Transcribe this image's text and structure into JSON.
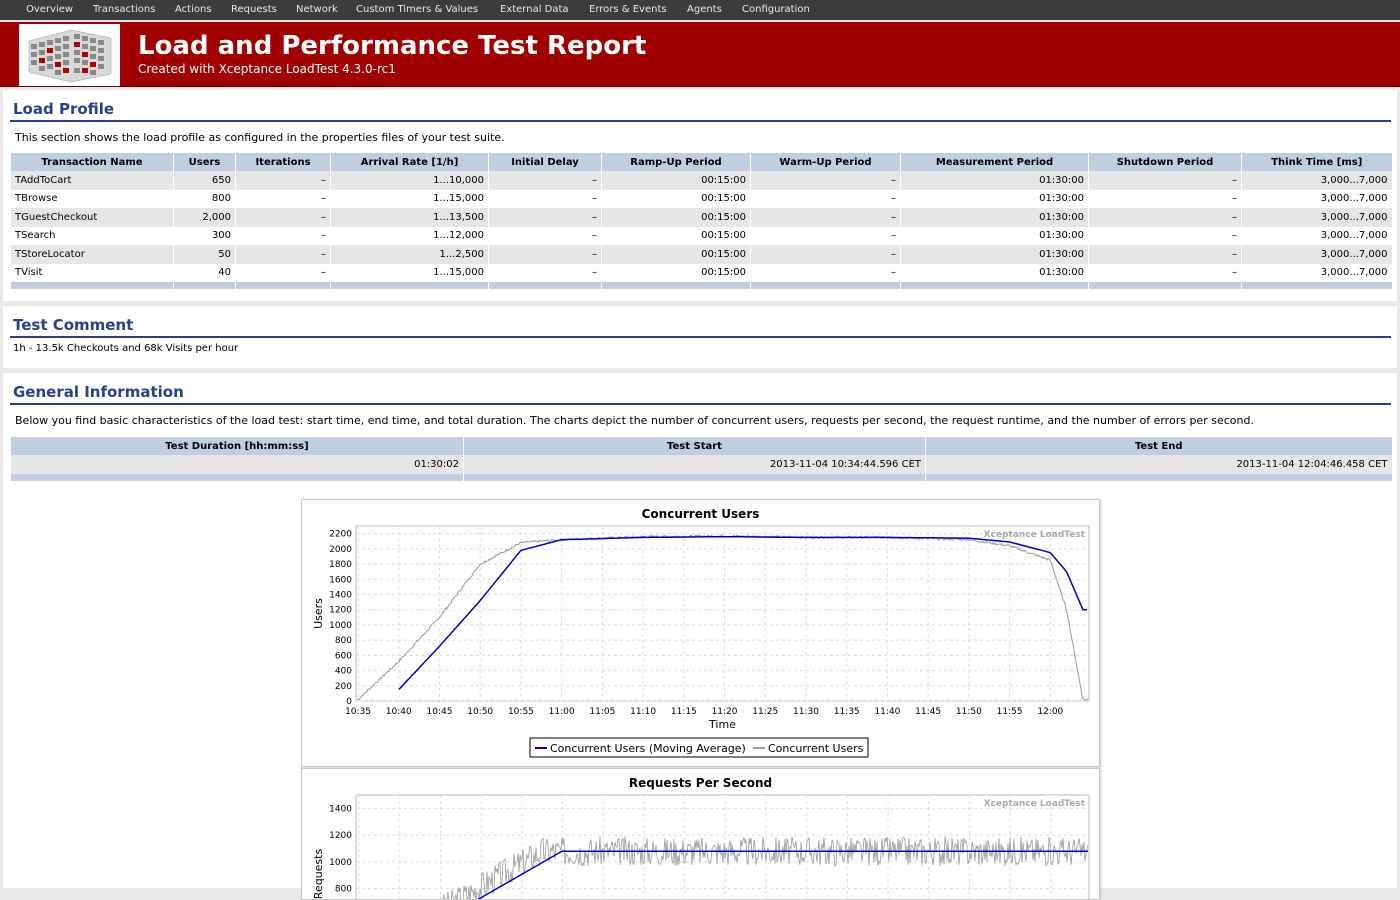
{
  "nav": [
    "Overview",
    "Transactions",
    "Actions",
    "Requests",
    "Network",
    "Custom Timers & Values",
    "External Data",
    "Errors & Events",
    "Agents",
    "Configuration"
  ],
  "header": {
    "title": "Load and Performance Test Report",
    "subtitle": "Created with Xceptance LoadTest 4.3.0-rc1"
  },
  "load_profile": {
    "title": "Load Profile",
    "description": "This section shows the load profile as configured in the properties files of your test suite.",
    "columns": [
      "Transaction Name",
      "Users",
      "Iterations",
      "Arrival Rate [1/h]",
      "Initial Delay",
      "Ramp-Up Period",
      "Warm-Up Period",
      "Measurement Period",
      "Shutdown Period",
      "Think Time [ms]"
    ],
    "rows": [
      [
        "TAddToCart",
        "650",
        "–",
        "1...10,000",
        "–",
        "00:15:00",
        "–",
        "01:30:00",
        "–",
        "3,000...7,000"
      ],
      [
        "TBrowse",
        "800",
        "–",
        "1...15,000",
        "–",
        "00:15:00",
        "–",
        "01:30:00",
        "–",
        "3,000...7,000"
      ],
      [
        "TGuestCheckout",
        "2,000",
        "–",
        "1...13,500",
        "–",
        "00:15:00",
        "–",
        "01:30:00",
        "–",
        "3,000...7,000"
      ],
      [
        "TSearch",
        "300",
        "–",
        "1...12,000",
        "–",
        "00:15:00",
        "–",
        "01:30:00",
        "–",
        "3,000...7,000"
      ],
      [
        "TStoreLocator",
        "50",
        "–",
        "1...2,500",
        "–",
        "00:15:00",
        "–",
        "01:30:00",
        "–",
        "3,000...7,000"
      ],
      [
        "TVisit",
        "40",
        "–",
        "1...15,000",
        "–",
        "00:15:00",
        "–",
        "01:30:00",
        "–",
        "3,000...7,000"
      ]
    ]
  },
  "test_comment": {
    "title": "Test Comment",
    "text": "1h - 13.5k Checkouts and 68k Visits per hour"
  },
  "general_info": {
    "title": "General Information",
    "description": "Below you find basic characteristics of the load test: start time, end time, and total duration. The charts depict the number of concurrent users, requests per second, the request runtime, and the number of errors per second.",
    "columns": [
      "Test Duration [hh:mm:ss]",
      "Test Start",
      "Test End"
    ],
    "values": [
      "01:30:02",
      "2013-11-04 10:34:44.596 CET",
      "2013-11-04 12:04:46.458 CET"
    ]
  },
  "chart_data": [
    {
      "type": "line",
      "title": "Concurrent Users",
      "watermark": "Xceptance LoadTest",
      "xlabel": "Time",
      "ylabel": "Users",
      "x_ticks": [
        "10:35",
        "10:40",
        "10:45",
        "10:50",
        "10:55",
        "11:00",
        "11:05",
        "11:10",
        "11:15",
        "11:20",
        "11:25",
        "11:30",
        "11:35",
        "11:40",
        "11:45",
        "11:50",
        "11:55",
        "12:00"
      ],
      "y_ticks": [
        0,
        200,
        400,
        600,
        800,
        1000,
        1200,
        1400,
        1600,
        1800,
        2000,
        2200
      ],
      "ylim": [
        0,
        2300
      ],
      "grid": true,
      "legend_position": "bottom",
      "series": [
        {
          "name": "Concurrent Users (Moving Average)",
          "color": "#0000cc",
          "x": [
            "10:40",
            "10:45",
            "10:50",
            "10:55",
            "11:00",
            "11:10",
            "11:20",
            "11:30",
            "11:40",
            "11:50",
            "11:55",
            "12:00",
            "12:02",
            "12:04"
          ],
          "values": [
            150,
            720,
            1320,
            1980,
            2120,
            2150,
            2160,
            2150,
            2150,
            2140,
            2090,
            1950,
            1700,
            1200
          ]
        },
        {
          "name": "Concurrent Users",
          "color": "#9a9a9a",
          "x": [
            "10:35",
            "10:40",
            "10:45",
            "10:50",
            "10:55",
            "11:00",
            "11:10",
            "11:20",
            "11:30",
            "11:40",
            "11:50",
            "11:55",
            "12:00",
            "12:02",
            "12:04"
          ],
          "values": [
            20,
            520,
            1100,
            1800,
            2080,
            2120,
            2160,
            2170,
            2150,
            2150,
            2120,
            2040,
            1850,
            1200,
            20
          ]
        }
      ]
    },
    {
      "type": "line",
      "title": "Requests Per Second",
      "watermark": "Xceptance LoadTest",
      "ylabel": "Requests",
      "y_ticks": [
        800,
        1000,
        1200,
        1400
      ],
      "ylim": [
        0,
        1500
      ],
      "grid": true
    }
  ]
}
